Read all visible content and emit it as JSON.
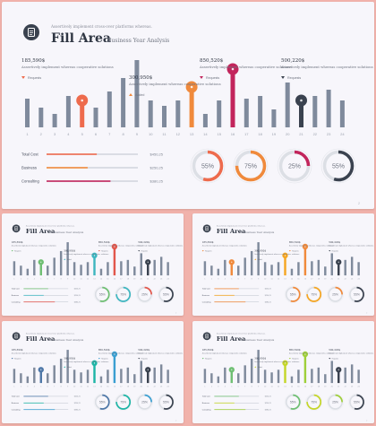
{
  "header": {
    "tagline": "Assertively implement cross-over platforms whereas.",
    "title": "Fill Area",
    "subtitle": "Business Year Analysis"
  },
  "annotations": [
    {
      "value": "185,590$",
      "text": "Assertively implement whereas cooperative solutions",
      "tag": "Requests"
    },
    {
      "value": "300,950$",
      "text": "Assertively implement whereas cooperative solutions",
      "tag": "Added"
    },
    {
      "value": "850,520$",
      "text": "Assertively implement whereas cooperative solutions",
      "tag": "Requests"
    },
    {
      "value": "500,220$",
      "text": "Assertively implement whereas cooperative solutions",
      "tag": "Requests"
    }
  ],
  "bar_labels": [
    "1",
    "2",
    "3",
    "4",
    "5",
    "6",
    "7",
    "8",
    "9",
    "10",
    "11",
    "12",
    "13",
    "14",
    "15",
    "16",
    "17",
    "18",
    "19",
    "20",
    "21",
    "22",
    "23",
    "24"
  ],
  "bar_values": [
    0.32,
    0.22,
    0.15,
    0.35,
    0.3,
    0.22,
    0.4,
    0.55,
    0.75,
    0.3,
    0.24,
    0.3,
    0.45,
    0.15,
    0.3,
    0.65,
    0.32,
    0.35,
    0.2,
    0.5,
    0.3,
    0.35,
    0.42,
    0.3
  ],
  "metrics": [
    {
      "label": "Total Cost",
      "value": "$450,25",
      "fill": 0.55
    },
    {
      "label": "Business",
      "value": "$250,25",
      "fill": 0.45
    },
    {
      "label": "Consulting",
      "value": "$380,25",
      "fill": 0.7
    }
  ],
  "donuts": [
    {
      "label": "55%",
      "value": 0.55
    },
    {
      "label": "75%",
      "value": 0.75
    },
    {
      "label": "25%",
      "value": 0.25
    },
    {
      "label": "55%",
      "value": 0.55
    }
  ],
  "slide_number": "2",
  "themes": {
    "main": {
      "accent": [
        "#ee6b4d",
        "#f08a3c",
        "#c2255c",
        "#3a424f"
      ],
      "bar": "#7f8a9c"
    },
    "thumb1": {
      "accent": [
        "#6fbf73",
        "#3fb6c0",
        "#e2574c",
        "#3a424f"
      ]
    },
    "thumb2": {
      "accent": [
        "#f08a3c",
        "#f5a623",
        "#f08a3c",
        "#3a424f"
      ]
    },
    "thumb3": {
      "accent": [
        "#4f78a8",
        "#1fb5a6",
        "#3b9fd1",
        "#3a424f"
      ]
    },
    "thumb4": {
      "accent": [
        "#6fbf73",
        "#c5d629",
        "#9fcf3a",
        "#3a424f"
      ]
    }
  }
}
